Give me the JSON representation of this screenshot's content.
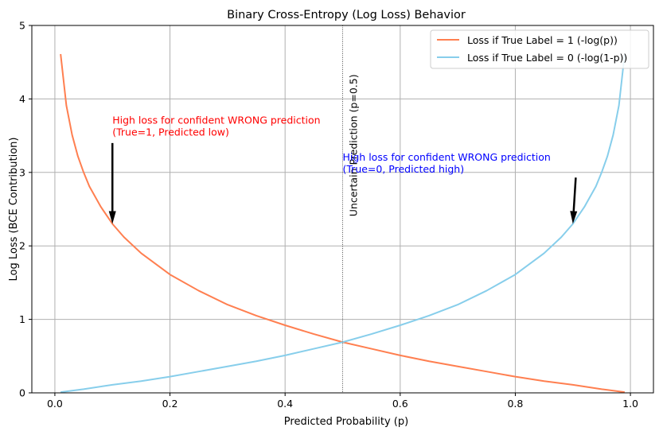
{
  "chart_data": {
    "type": "line",
    "title": "Binary Cross-Entropy (Log Loss) Behavior",
    "xlabel": "Predicted Probability (p)",
    "ylabel": "Log Loss (BCE Contribution)",
    "xlim": [
      -0.04,
      1.04
    ],
    "ylim": [
      0,
      5
    ],
    "xticks": [
      0.0,
      0.2,
      0.4,
      0.6,
      0.8,
      1.0
    ],
    "xtick_labels": [
      "0.0",
      "0.2",
      "0.4",
      "0.6",
      "0.8",
      "1.0"
    ],
    "yticks": [
      0,
      1,
      2,
      3,
      4,
      5
    ],
    "ytick_labels": [
      "0",
      "1",
      "2",
      "3",
      "4",
      "5"
    ],
    "grid": true,
    "legend_position": "top-right",
    "series": [
      {
        "name": "Loss if True Label = 1 (-log(p))",
        "color": "#ff7f50",
        "x": [
          0.01,
          0.02,
          0.03,
          0.04,
          0.05,
          0.06,
          0.08,
          0.1,
          0.12,
          0.15,
          0.2,
          0.25,
          0.3,
          0.35,
          0.4,
          0.45,
          0.5,
          0.55,
          0.6,
          0.65,
          0.7,
          0.75,
          0.8,
          0.85,
          0.9,
          0.95,
          0.99
        ],
        "y": [
          4.61,
          3.91,
          3.51,
          3.22,
          3.0,
          2.81,
          2.53,
          2.3,
          2.12,
          1.9,
          1.61,
          1.39,
          1.2,
          1.05,
          0.92,
          0.8,
          0.69,
          0.6,
          0.51,
          0.43,
          0.36,
          0.29,
          0.22,
          0.16,
          0.11,
          0.05,
          0.01
        ]
      },
      {
        "name": "Loss if True Label = 0 (-log(1-p))",
        "color": "#87ceeb",
        "x": [
          0.01,
          0.05,
          0.1,
          0.15,
          0.2,
          0.25,
          0.3,
          0.35,
          0.4,
          0.45,
          0.5,
          0.55,
          0.6,
          0.65,
          0.7,
          0.75,
          0.8,
          0.85,
          0.88,
          0.9,
          0.92,
          0.94,
          0.95,
          0.96,
          0.97,
          0.98,
          0.99
        ],
        "y": [
          0.01,
          0.05,
          0.11,
          0.16,
          0.22,
          0.29,
          0.36,
          0.43,
          0.51,
          0.6,
          0.69,
          0.8,
          0.92,
          1.05,
          1.2,
          1.39,
          1.61,
          1.9,
          2.12,
          2.3,
          2.53,
          2.81,
          3.0,
          3.22,
          3.51,
          3.91,
          4.61
        ]
      }
    ],
    "vline": {
      "x": 0.5,
      "label": "Uncertain Prediction (p=0.5)",
      "color": "#555555"
    },
    "annotations": [
      {
        "name": "annotation-true1",
        "lines": [
          "High loss for confident WRONG prediction",
          "(True=1, Predicted low)"
        ],
        "color": "#ff0000",
        "text_x": 0.1,
        "text_y": 3.5,
        "arrow_from": [
          0.1,
          3.4
        ],
        "arrow_to": [
          0.1,
          2.3
        ]
      },
      {
        "name": "annotation-true0",
        "lines": [
          "High loss for confident WRONG prediction",
          "(True=0, Predicted high)"
        ],
        "color": "#0000ff",
        "text_x": 0.5,
        "text_y": 3.0,
        "arrow_from": [
          0.905,
          2.93
        ],
        "arrow_to": [
          0.9,
          2.3
        ]
      }
    ]
  }
}
